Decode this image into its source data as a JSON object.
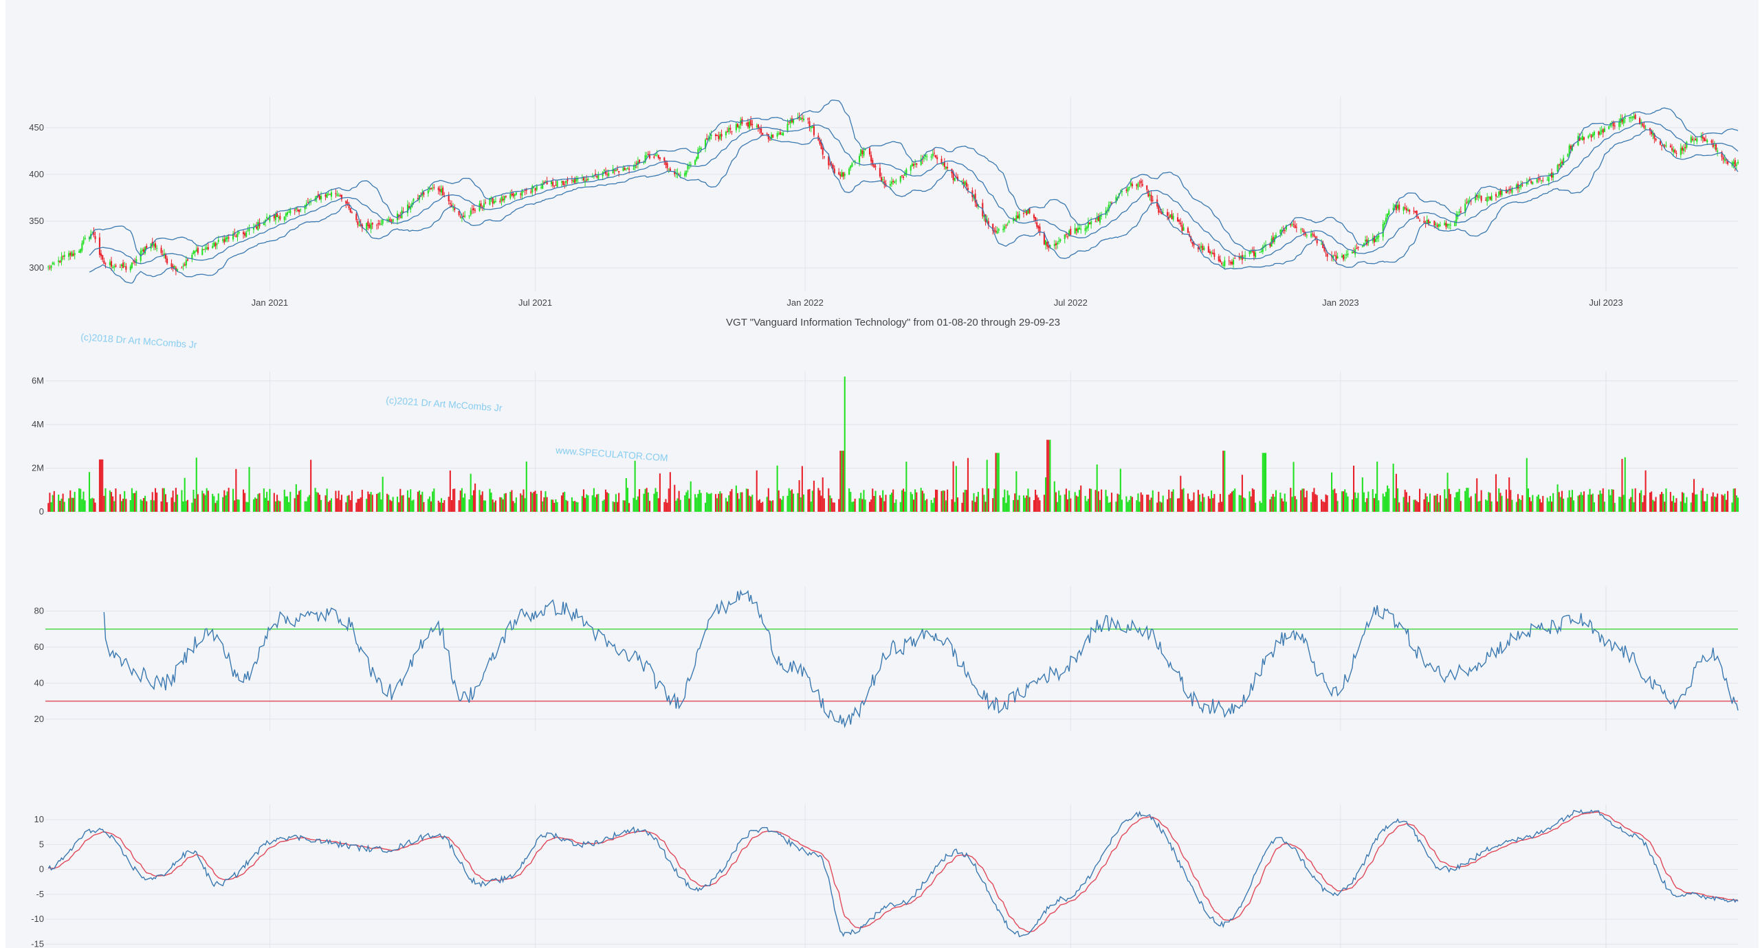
{
  "chart_title": "VGT \"Vanguard Information Technology\" from 01-08-20 through 29-09-23",
  "watermarks": [
    "(c)2018 Dr Art McCombs Jr",
    "(c)2021 Dr Art McCombs Jr",
    "www.SPECULATOR.COM"
  ],
  "colors": {
    "up": "#22e022",
    "down": "#e8202a",
    "band": "#3a78b0",
    "rsi_line": "#3a78b0",
    "rsi_upper": "#4cd84c",
    "rsi_lower": "#e05060",
    "macd": "#3a78b0",
    "signal": "#e04858",
    "grid": "#e2e4ea",
    "background": "#f4f5f9"
  },
  "chart_data": [
    {
      "type": "candlestick",
      "name": "price",
      "x_start": "2020-08-01",
      "x_end": "2023-09-29",
      "x_tick_labels": [
        "Jan 2021",
        "Jul 2021",
        "Jan 2022",
        "Jul 2022",
        "Jan 2023",
        "Jul 2023"
      ],
      "y_ticks": [
        300,
        350,
        400,
        450
      ],
      "ylim": [
        278,
        480
      ],
      "overlays": [
        "bollinger upper",
        "bollinger middle",
        "bollinger lower"
      ],
      "close_path": [
        {
          "date": "2020-08-01",
          "close": 300
        },
        {
          "date": "2020-08-20",
          "close": 315
        },
        {
          "date": "2020-09-02",
          "close": 337
        },
        {
          "date": "2020-09-10",
          "close": 305
        },
        {
          "date": "2020-09-25",
          "close": 300
        },
        {
          "date": "2020-10-12",
          "close": 325
        },
        {
          "date": "2020-10-30",
          "close": 300
        },
        {
          "date": "2020-11-15",
          "close": 320
        },
        {
          "date": "2020-12-10",
          "close": 335
        },
        {
          "date": "2021-01-05",
          "close": 355
        },
        {
          "date": "2021-02-15",
          "close": 380
        },
        {
          "date": "2021-03-05",
          "close": 345
        },
        {
          "date": "2021-03-20",
          "close": 350
        },
        {
          "date": "2021-04-25",
          "close": 385
        },
        {
          "date": "2021-05-12",
          "close": 355
        },
        {
          "date": "2021-06-01",
          "close": 372
        },
        {
          "date": "2021-07-15",
          "close": 390
        },
        {
          "date": "2021-08-30",
          "close": 405
        },
        {
          "date": "2021-09-20",
          "close": 420
        },
        {
          "date": "2021-10-05",
          "close": 400
        },
        {
          "date": "2021-11-01",
          "close": 440
        },
        {
          "date": "2021-11-20",
          "close": 455
        },
        {
          "date": "2021-12-10",
          "close": 440
        },
        {
          "date": "2021-12-28",
          "close": 463
        },
        {
          "date": "2022-01-25",
          "close": 400
        },
        {
          "date": "2022-02-10",
          "close": 425
        },
        {
          "date": "2022-02-25",
          "close": 390
        },
        {
          "date": "2022-03-28",
          "close": 420
        },
        {
          "date": "2022-04-15",
          "close": 395
        },
        {
          "date": "2022-05-12",
          "close": 340
        },
        {
          "date": "2022-06-01",
          "close": 360
        },
        {
          "date": "2022-06-16",
          "close": 325
        },
        {
          "date": "2022-07-10",
          "close": 345
        },
        {
          "date": "2022-08-15",
          "close": 390
        },
        {
          "date": "2022-09-05",
          "close": 355
        },
        {
          "date": "2022-09-30",
          "close": 320
        },
        {
          "date": "2022-10-14",
          "close": 305
        },
        {
          "date": "2022-11-02",
          "close": 315
        },
        {
          "date": "2022-11-30",
          "close": 345
        },
        {
          "date": "2022-12-10",
          "close": 335
        },
        {
          "date": "2022-12-28",
          "close": 310
        },
        {
          "date": "2023-01-25",
          "close": 330
        },
        {
          "date": "2023-02-05",
          "close": 365
        },
        {
          "date": "2023-03-12",
          "close": 345
        },
        {
          "date": "2023-04-05",
          "close": 375
        },
        {
          "date": "2023-05-20",
          "close": 395
        },
        {
          "date": "2023-06-15",
          "close": 440
        },
        {
          "date": "2023-07-18",
          "close": 460
        },
        {
          "date": "2023-08-18",
          "close": 425
        },
        {
          "date": "2023-09-01",
          "close": 440
        },
        {
          "date": "2023-09-29",
          "close": 410
        }
      ]
    },
    {
      "type": "bar",
      "name": "volume",
      "y_ticks": [
        0,
        2000000,
        4000000,
        6000000
      ],
      "y_tick_labels": [
        "0",
        "2M",
        "4M",
        "6M"
      ],
      "ylim": [
        0,
        6300000
      ],
      "notable_spikes": [
        {
          "date": "2022-01-28",
          "volume": 6200000
        },
        {
          "date": "2022-01-26",
          "volume": 2800000
        },
        {
          "date": "2022-03-12",
          "volume": 2300000
        },
        {
          "date": "2022-05-12",
          "volume": 2700000
        },
        {
          "date": "2022-06-16",
          "volume": 3300000
        },
        {
          "date": "2022-10-14",
          "volume": 2800000
        },
        {
          "date": "2022-11-10",
          "volume": 2700000
        },
        {
          "date": "2020-09-08",
          "volume": 2400000
        }
      ]
    },
    {
      "type": "line",
      "name": "rsi",
      "y_ticks": [
        20,
        40,
        60,
        80
      ],
      "ylim": [
        15,
        92
      ],
      "upper_level": 70,
      "lower_level": 30,
      "path": [
        {
          "date": "2020-09-10",
          "value": 78
        },
        {
          "date": "2020-09-12",
          "value": 55
        },
        {
          "date": "2020-10-20",
          "value": 40
        },
        {
          "date": "2020-11-20",
          "value": 68
        },
        {
          "date": "2020-12-15",
          "value": 42
        },
        {
          "date": "2021-01-05",
          "value": 75
        },
        {
          "date": "2021-02-15",
          "value": 78
        },
        {
          "date": "2021-03-25",
          "value": 35
        },
        {
          "date": "2021-04-25",
          "value": 72
        },
        {
          "date": "2021-05-12",
          "value": 32
        },
        {
          "date": "2021-06-25",
          "value": 78
        },
        {
          "date": "2021-07-15",
          "value": 82
        },
        {
          "date": "2021-09-05",
          "value": 55
        },
        {
          "date": "2021-10-05",
          "value": 30
        },
        {
          "date": "2021-11-01",
          "value": 80
        },
        {
          "date": "2021-11-20",
          "value": 90
        },
        {
          "date": "2021-12-20",
          "value": 50
        },
        {
          "date": "2022-01-28",
          "value": 18
        },
        {
          "date": "2022-03-05",
          "value": 60
        },
        {
          "date": "2022-03-28",
          "value": 67
        },
        {
          "date": "2022-05-12",
          "value": 28
        },
        {
          "date": "2022-06-20",
          "value": 45
        },
        {
          "date": "2022-07-25",
          "value": 73
        },
        {
          "date": "2022-08-18",
          "value": 70
        },
        {
          "date": "2022-09-30",
          "value": 28
        },
        {
          "date": "2022-10-14",
          "value": 25
        },
        {
          "date": "2022-11-30",
          "value": 67
        },
        {
          "date": "2022-12-28",
          "value": 35
        },
        {
          "date": "2023-01-28",
          "value": 80
        },
        {
          "date": "2023-03-12",
          "value": 45
        },
        {
          "date": "2023-05-20",
          "value": 70
        },
        {
          "date": "2023-06-12",
          "value": 75
        },
        {
          "date": "2023-07-05",
          "value": 60
        },
        {
          "date": "2023-08-18",
          "value": 30
        },
        {
          "date": "2023-09-10",
          "value": 57
        },
        {
          "date": "2023-09-29",
          "value": 28
        }
      ]
    },
    {
      "type": "line",
      "name": "macd",
      "y_ticks": [
        -15,
        -10,
        -5,
        0,
        5,
        10
      ],
      "ylim": [
        -15.5,
        12.5
      ],
      "series": [
        {
          "values_path": [
            {
              "date": "2020-08-01",
              "value": 0
            },
            {
              "date": "2020-09-05",
              "value": 8
            },
            {
              "date": "2020-10-12",
              "value": -2
            },
            {
              "date": "2020-11-10",
              "value": 3.5
            },
            {
              "date": "2020-11-25",
              "value": -3
            },
            {
              "date": "2021-01-10",
              "value": 6.5
            },
            {
              "date": "2021-03-20",
              "value": 4
            },
            {
              "date": "2021-04-25",
              "value": 7
            },
            {
              "date": "2021-05-25",
              "value": -3
            },
            {
              "date": "2021-06-10",
              "value": -2
            },
            {
              "date": "2021-07-10",
              "value": 7
            },
            {
              "date": "2021-08-01",
              "value": 5
            },
            {
              "date": "2021-09-10",
              "value": 8
            },
            {
              "date": "2021-10-20",
              "value": -4
            },
            {
              "date": "2021-12-01",
              "value": 8
            },
            {
              "date": "2022-01-10",
              "value": 3
            },
            {
              "date": "2022-01-28",
              "value": -13
            },
            {
              "date": "2022-03-05",
              "value": -7
            },
            {
              "date": "2022-04-15",
              "value": 3.5
            },
            {
              "date": "2022-05-28",
              "value": -13
            },
            {
              "date": "2022-06-25",
              "value": -6
            },
            {
              "date": "2022-08-18",
              "value": 11
            },
            {
              "date": "2022-10-14",
              "value": -11
            },
            {
              "date": "2022-11-20",
              "value": 6
            },
            {
              "date": "2022-12-28",
              "value": -5
            },
            {
              "date": "2023-02-10",
              "value": 10
            },
            {
              "date": "2023-03-12",
              "value": 0
            },
            {
              "date": "2023-05-01",
              "value": 6
            },
            {
              "date": "2023-06-20",
              "value": 12
            },
            {
              "date": "2023-07-20",
              "value": 7
            },
            {
              "date": "2023-08-18",
              "value": -5
            },
            {
              "date": "2023-09-29",
              "value": -6
            }
          ]
        },
        {
          "smoothing": "signal line, lags macd"
        }
      ]
    }
  ]
}
